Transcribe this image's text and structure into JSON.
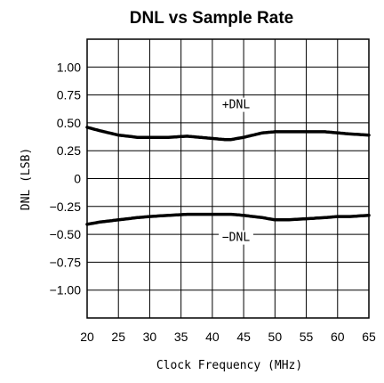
{
  "chart_data": {
    "type": "line",
    "title": "DNL vs Sample Rate",
    "xlabel": "Clock Frequency (MHz)",
    "ylabel": "DNL (LSB)",
    "xlim": [
      20,
      65
    ],
    "ylim": [
      -1.25,
      1.25
    ],
    "x_ticks": [
      20,
      25,
      30,
      35,
      40,
      45,
      50,
      55,
      60,
      65
    ],
    "x_tick_labels": [
      "20",
      "25",
      "30",
      "35",
      "40",
      "45",
      "50",
      "55",
      "60",
      "65"
    ],
    "y_ticks": [
      1.0,
      0.75,
      0.5,
      0.25,
      0,
      -0.25,
      -0.5,
      -0.75,
      -1.0
    ],
    "y_tick_labels": [
      "1.00",
      "0.75",
      "0.50",
      "0.25",
      "0",
      "-0.25",
      "-0.50",
      "-0.75",
      "-1.00"
    ],
    "grid": true,
    "legend": "none",
    "series": [
      {
        "name": "+DNL",
        "x": [
          20,
          22,
          25,
          28,
          30,
          33,
          36,
          38,
          40,
          42,
          43,
          45,
          48,
          50,
          52,
          55,
          58,
          60,
          62,
          65
        ],
        "y": [
          0.46,
          0.43,
          0.39,
          0.37,
          0.37,
          0.37,
          0.38,
          0.37,
          0.36,
          0.35,
          0.35,
          0.37,
          0.41,
          0.42,
          0.42,
          0.42,
          0.42,
          0.41,
          0.4,
          0.39
        ]
      },
      {
        "name": "-DNL",
        "x": [
          20,
          22,
          25,
          28,
          30,
          33,
          36,
          40,
          43,
          45,
          48,
          50,
          52,
          55,
          58,
          60,
          62,
          65
        ],
        "y": [
          -0.41,
          -0.39,
          -0.37,
          -0.35,
          -0.34,
          -0.33,
          -0.32,
          -0.32,
          -0.32,
          -0.33,
          -0.35,
          -0.37,
          -0.37,
          -0.36,
          -0.35,
          -0.34,
          -0.34,
          -0.33
        ]
      }
    ],
    "annotations": [
      {
        "text": "+DNL",
        "series": "+DNL"
      },
      {
        "text": "-DNL",
        "series": "-DNL"
      }
    ]
  }
}
